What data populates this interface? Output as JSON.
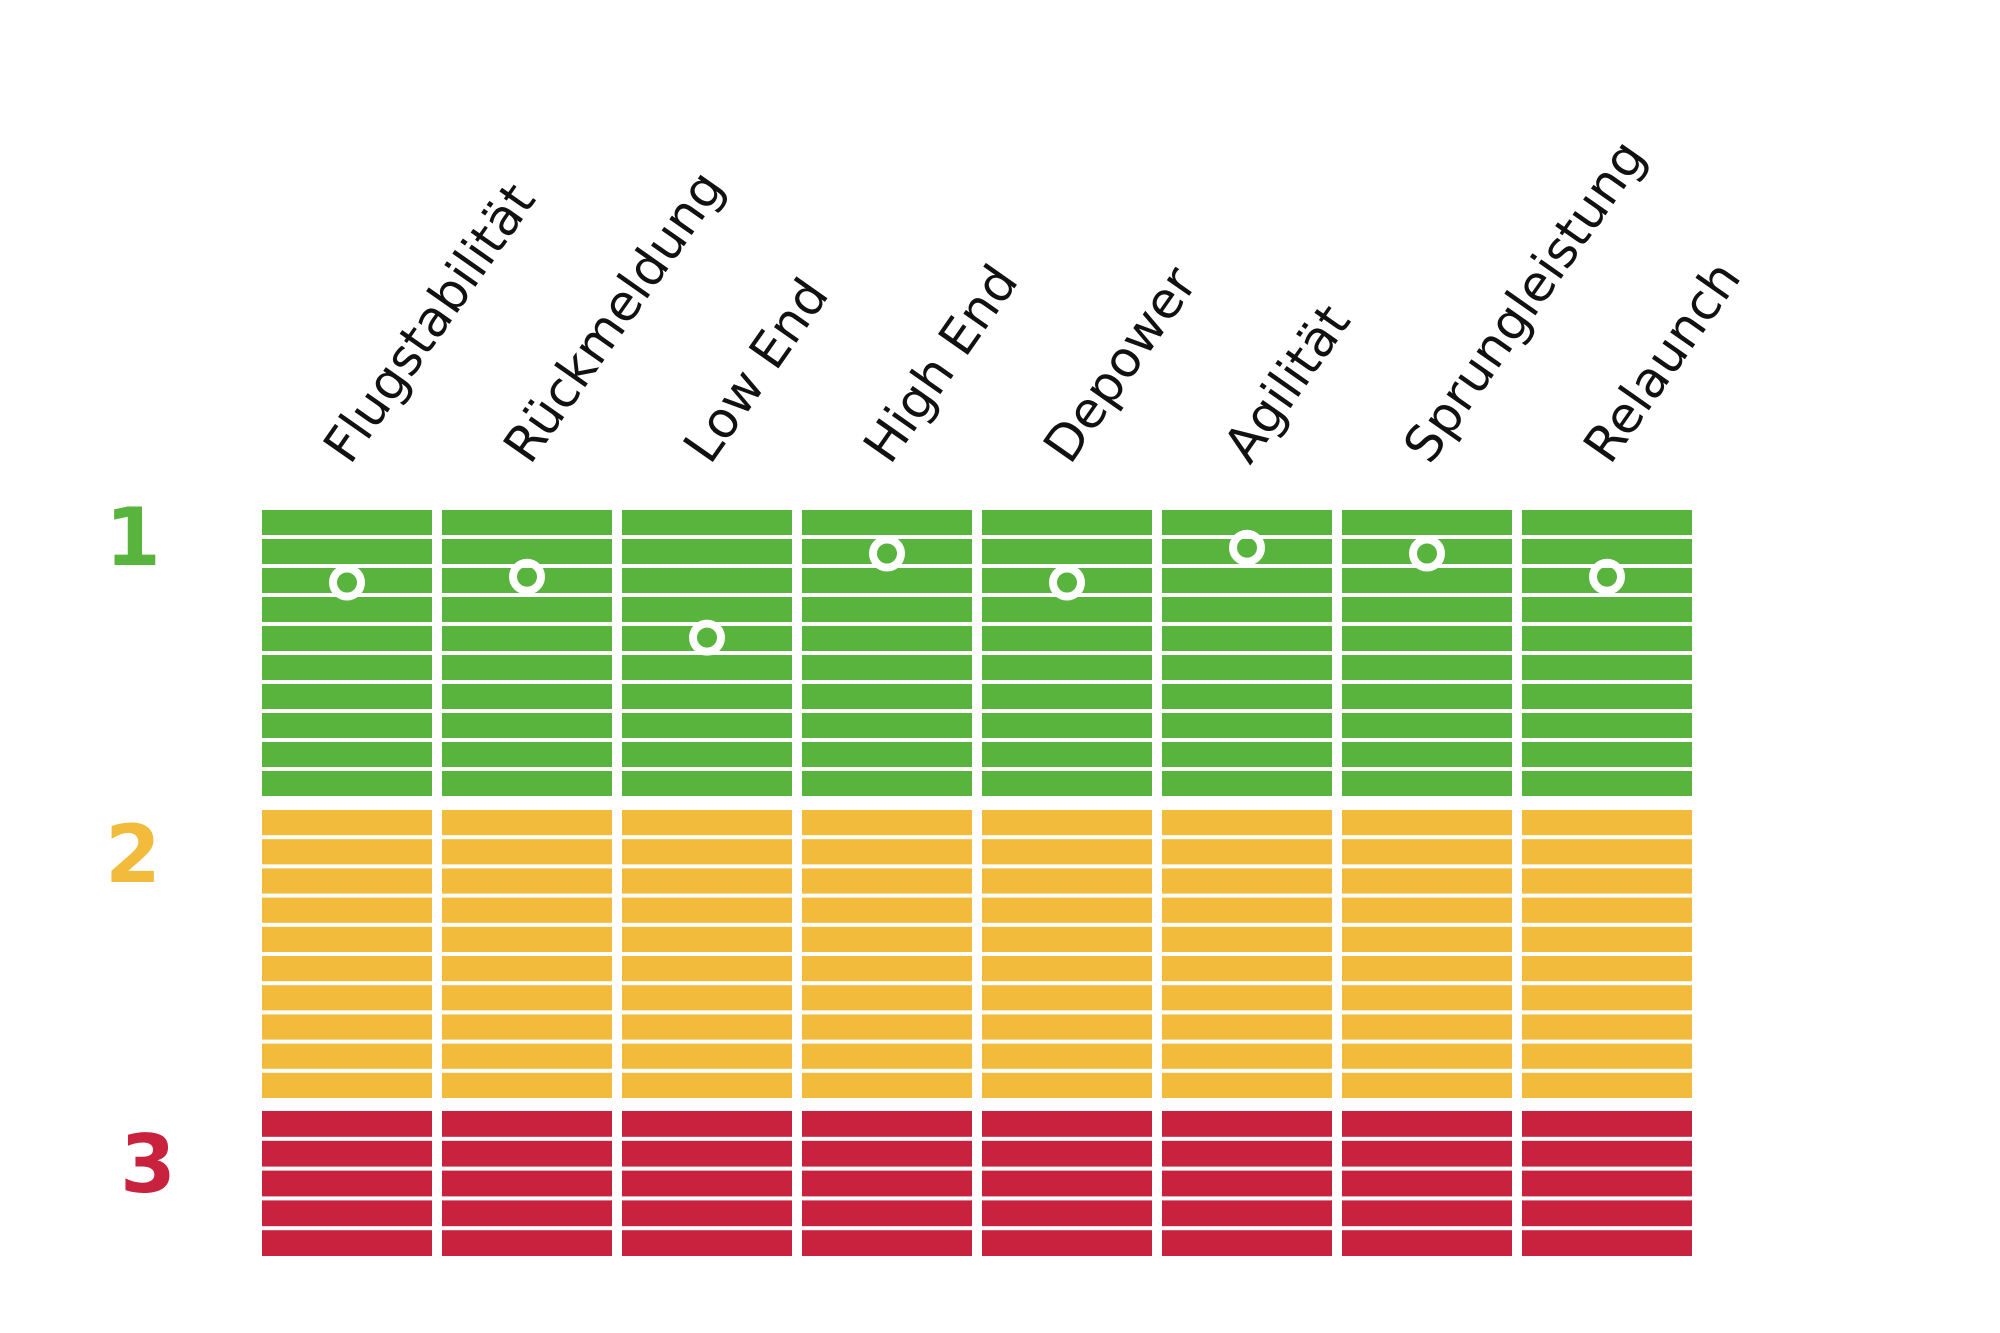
{
  "chart_data": {
    "type": "scatter",
    "title": "",
    "xlabel": "",
    "ylabel": "",
    "categories": [
      "Flugstabilität",
      "Rückmeldung",
      "Low End",
      "High End",
      "Depower",
      "Agilität",
      "Sprungleistung",
      "Relaunch"
    ],
    "zones": [
      {
        "label": "1",
        "color": "#58b43c",
        "stripes": 10
      },
      {
        "label": "2",
        "color": "#f2bb3b",
        "stripes": 10
      },
      {
        "label": "3",
        "color": "#c8223f",
        "stripes": 5
      }
    ],
    "rating_scale": "stripe index from top of chart (0 = best)",
    "ylim": [
      0,
      25
    ],
    "values": [
      2.5,
      2.3,
      4.4,
      1.5,
      2.5,
      1.3,
      1.5,
      2.3
    ],
    "marker_color": "#ffffff",
    "grid": false,
    "legend": "none"
  }
}
